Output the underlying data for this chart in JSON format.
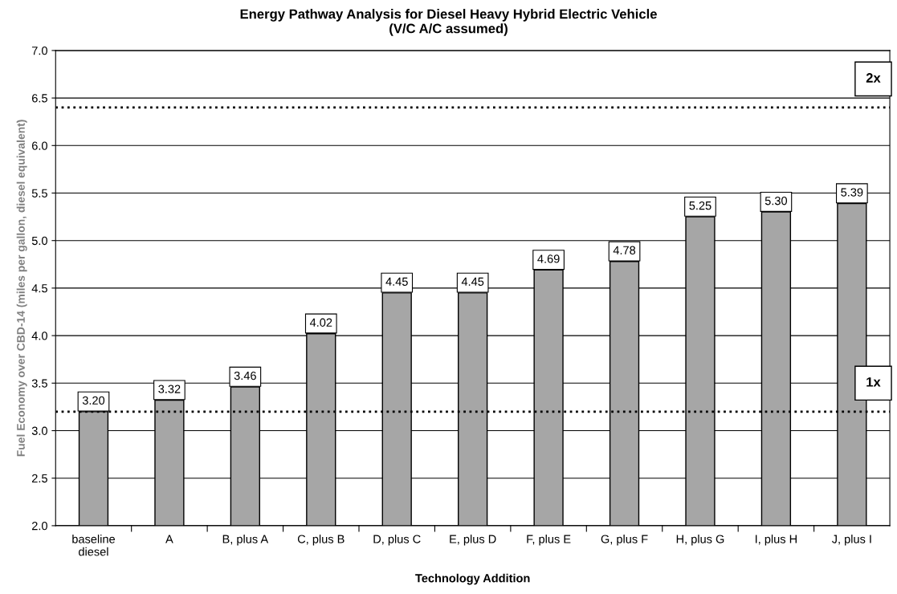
{
  "chart_data": {
    "type": "bar",
    "title": "Energy Pathway Analysis for Diesel Heavy Hybrid Electric Vehicle",
    "subtitle": "(V/C A/C assumed)",
    "xlabel": "Technology Addition",
    "ylabel": "Fuel Economy over CBD-14 (miles per gallon, diesel equivalent)",
    "categories": [
      "baseline\ndiesel",
      "A",
      "B, plus A",
      "C, plus B",
      "D, plus C",
      "E, plus D",
      "F, plus E",
      "G, plus F",
      "H, plus G",
      "I, plus H",
      "J, plus I"
    ],
    "values": [
      3.2,
      3.32,
      3.46,
      4.02,
      4.45,
      4.45,
      4.69,
      4.78,
      5.25,
      5.3,
      5.39
    ],
    "value_labels": [
      "3.20",
      "3.32",
      "3.46",
      "4.02",
      "4.45",
      "4.45",
      "4.69",
      "4.78",
      "5.25",
      "5.30",
      "5.39"
    ],
    "color": "#a6a6a6",
    "ylim": [
      2.0,
      7.0
    ],
    "yticks": [
      {
        "value": 2.0,
        "label": "2.0"
      },
      {
        "value": 2.5,
        "label": "2.5"
      },
      {
        "value": 3.0,
        "label": "3.0"
      },
      {
        "value": 3.5,
        "label": "3.5"
      },
      {
        "value": 4.0,
        "label": "4.0"
      },
      {
        "value": 4.5,
        "label": "4.5"
      },
      {
        "value": 5.0,
        "label": "5.0"
      },
      {
        "value": 5.5,
        "label": "5.5"
      },
      {
        "value": 6.0,
        "label": "6.0"
      },
      {
        "value": 6.5,
        "label": "6.5"
      },
      {
        "value": 7.0,
        "label": "7.0"
      }
    ],
    "grid": "y",
    "ref_lines": [
      {
        "axis": "y",
        "value": 6.4,
        "label": "2x",
        "line_style": "dotted",
        "color": "#000000"
      },
      {
        "axis": "y",
        "value": 3.2,
        "label": "1x",
        "line_style": "dotted",
        "color": "#000000"
      }
    ]
  }
}
